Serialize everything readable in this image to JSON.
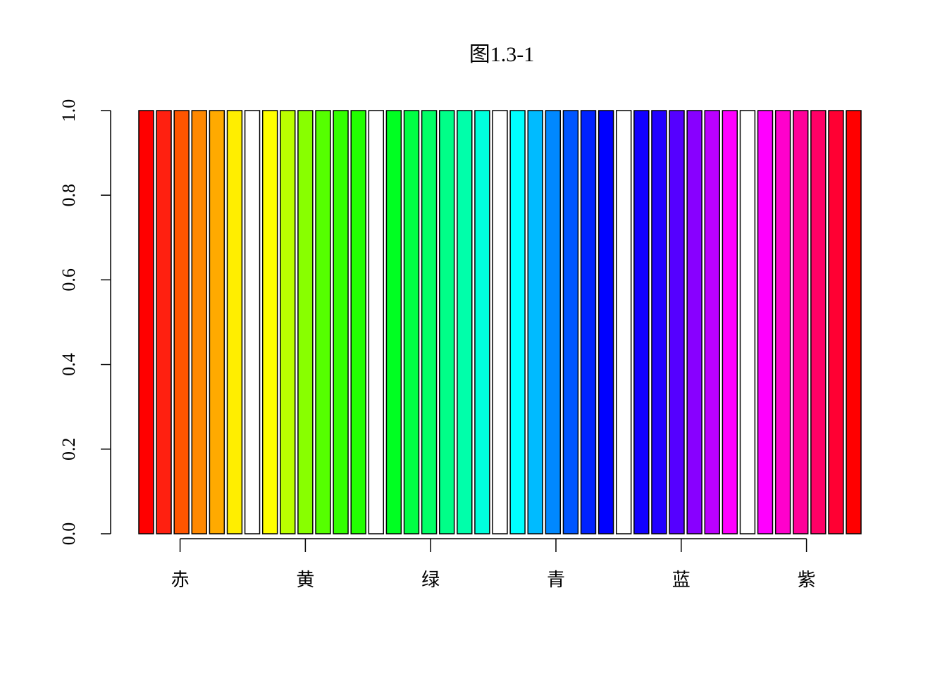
{
  "chart_data": {
    "type": "bar",
    "title": "图1.3-1",
    "categories": [
      null,
      null,
      null,
      null,
      null,
      null,
      null,
      null,
      null,
      null,
      null,
      null,
      null,
      null,
      null,
      null,
      null,
      null,
      null,
      null,
      null,
      null,
      null,
      null,
      null,
      null,
      null,
      null,
      null,
      null,
      null,
      null,
      null,
      null,
      null,
      null,
      null,
      null,
      null,
      null,
      null
    ],
    "values": [
      1,
      1,
      1,
      1,
      1,
      1,
      1,
      1,
      1,
      1,
      1,
      1,
      1,
      1,
      1,
      1,
      1,
      1,
      1,
      1,
      1,
      1,
      1,
      1,
      1,
      1,
      1,
      1,
      1,
      1,
      1,
      1,
      1,
      1,
      1,
      1,
      1,
      1,
      1,
      1,
      1
    ],
    "colors": [
      "#FF0000",
      "#FF2010",
      "#FF5500",
      "#FF8800",
      "#FFAA00",
      "#FFEE00",
      "#FFFFFF",
      "#FFFF00",
      "#BBFF00",
      "#88FF00",
      "#55FF00",
      "#33FF00",
      "#22FF00",
      "#FFFFFF",
      "#00FF22",
      "#00FF44",
      "#00FF66",
      "#00FF88",
      "#00FFAA",
      "#00FFDD",
      "#FFFFFF",
      "#00FFFF",
      "#00BBFF",
      "#0088FF",
      "#0055FF",
      "#0022FF",
      "#0000FF",
      "#FFFFFF",
      "#1100FF",
      "#2200FF",
      "#5500FF",
      "#8800FF",
      "#BB00FF",
      "#FF00FF",
      "#FFFFFF",
      "#FF00FF",
      "#FF00CC",
      "#FF0099",
      "#FF0066",
      "#FF0033",
      "#FF0000"
    ],
    "xlim": [
      0.2,
      49.2
    ],
    "xticks": [
      {
        "value": 3,
        "label": "赤"
      },
      {
        "value": 11.5,
        "label": "黄"
      },
      {
        "value": 20,
        "label": "绿"
      },
      {
        "value": 28.5,
        "label": "青"
      },
      {
        "value": 37,
        "label": "蓝"
      },
      {
        "value": 45.5,
        "label": "紫"
      }
    ],
    "ylim": [
      0,
      1
    ],
    "yticks": [
      {
        "value": 0,
        "label": "0.0"
      },
      0.2,
      0.4,
      0.6,
      0.8,
      {
        "value": 1,
        "label": "1.0"
      }
    ]
  }
}
